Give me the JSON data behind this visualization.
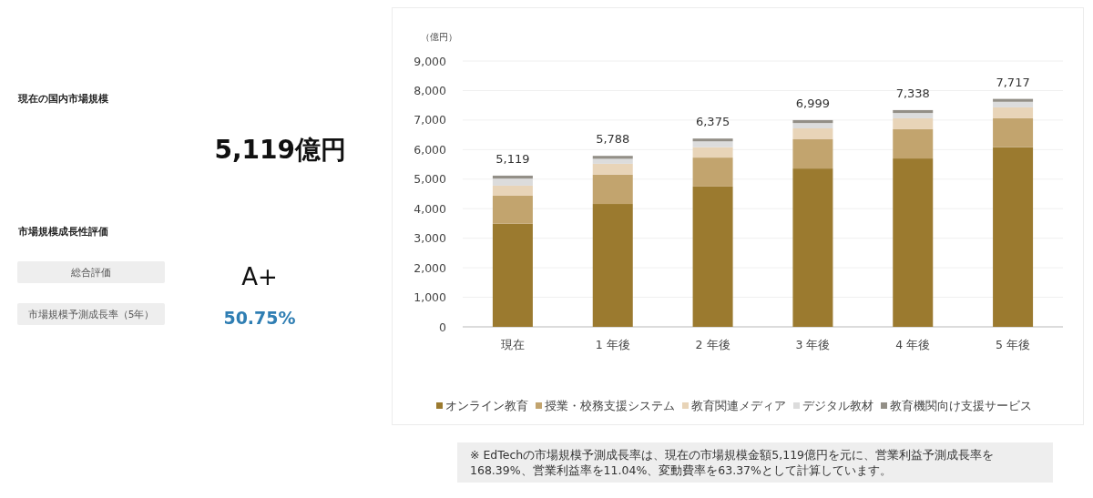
{
  "chart_data": [
    {
      "type": "other",
      "title": "現在の国内市場規模",
      "annotations": [
        "5,119億円",
        "市場規模成長性評価",
        "総合評価",
        "A+",
        "市場規模予測成長率（5年）",
        "50.75%"
      ]
    },
    {
      "type": "bar",
      "stacked": true,
      "ylabel": "（億円）",
      "categories": [
        "現在",
        "1 年後",
        "2 年後",
        "3 年後",
        "4 年後",
        "5 年後"
      ],
      "series": [
        {
          "name": "オンライン教育",
          "color": "#9b7a2f",
          "values": [
            3490,
            4160,
            4750,
            5360,
            5700,
            6080
          ]
        },
        {
          "name": "授業・校務支援システム",
          "color": "#c2a46e",
          "values": [
            950,
            990,
            980,
            990,
            990,
            980
          ]
        },
        {
          "name": "教育関連メディア",
          "color": "#e8d4b8",
          "values": [
            340,
            370,
            350,
            370,
            370,
            370
          ]
        },
        {
          "name": "デジタル教材",
          "color": "#dcdcdc",
          "values": [
            240,
            170,
            200,
            180,
            180,
            190
          ]
        },
        {
          "name": "教育機関向け支援サービス",
          "color": "#938f87",
          "values": [
            99,
            98,
            95,
            99,
            98,
            97
          ]
        }
      ],
      "totals": [
        "5,119",
        "5,788",
        "6,375",
        "6,999",
        "7,338",
        "7,717"
      ],
      "ylim": [
        0,
        9000
      ],
      "yticks": [
        {
          "value": 0,
          "label": "0"
        },
        {
          "value": 1000,
          "label": "1,000"
        },
        {
          "value": 2000,
          "label": "2,000"
        },
        {
          "value": 3000,
          "label": "3,000"
        },
        {
          "value": 4000,
          "label": "4,000"
        },
        {
          "value": 5000,
          "label": "5,000"
        },
        {
          "value": 6000,
          "label": "6,000"
        },
        {
          "value": 7000,
          "label": "7,000"
        },
        {
          "value": 8000,
          "label": "8,000"
        },
        {
          "value": 9000,
          "label": "9,000"
        }
      ],
      "grid": "y",
      "legend": "bottom",
      "annotations": [
        "※ EdTechの市場規模予測成長率は、現在の市場規模金額5,119億円を元に、営業利益予測成長率を168.39%、営業利益率を11.04%、変動費率を63.37%として計算しています。"
      ]
    }
  ]
}
